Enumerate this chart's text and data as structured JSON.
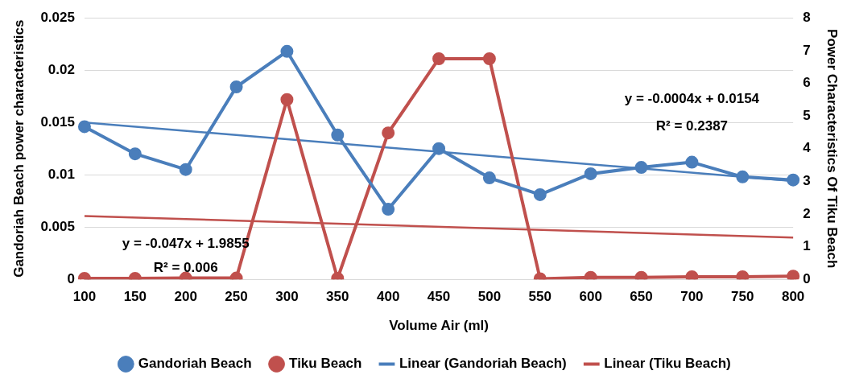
{
  "chart_data": {
    "type": "line",
    "xlabel": "Volume Air (ml)",
    "ylabel": "Gandoriah Beach power characteristics",
    "y2label": "Power Characteristics Of Tiku Beach",
    "categories": [
      "100",
      "150",
      "200",
      "250",
      "300",
      "350",
      "400",
      "450",
      "500",
      "550",
      "600",
      "650",
      "700",
      "750",
      "800"
    ],
    "series": [
      {
        "name": "Gandoriah Beach",
        "color": "#4a7ebb",
        "marker": "circle",
        "values": [
          0.0146,
          0.012,
          0.0105,
          0.0184,
          0.0218,
          0.0138,
          0.0067,
          0.0125,
          0.0097,
          0.0081,
          0.0101,
          0.0107,
          0.0112,
          0.0098,
          0.0095
        ]
      },
      {
        "name": "Tiku Beach",
        "color": "#c0504d",
        "marker": "circle",
        "axis": "y2",
        "values": [
          0.03,
          0.03,
          0.04,
          0.04,
          5.5,
          0.03,
          4.48,
          6.75,
          6.75,
          0.02,
          0.06,
          0.06,
          0.08,
          0.08,
          0.1
        ]
      },
      {
        "name": "Linear (Gandoriah Beach)",
        "color": "#4a7ebb",
        "marker": "none",
        "x": [
          "100",
          "800"
        ],
        "values": [
          0.015,
          0.0094
        ]
      },
      {
        "name": "Linear (Tiku Beach)",
        "color": "#c0504d",
        "marker": "none",
        "axis": "y2",
        "x": [
          "100",
          "800"
        ],
        "values": [
          1.94,
          1.28
        ]
      }
    ],
    "ylim": [
      0,
      0.025
    ],
    "yticks": [
      0,
      0.005,
      0.01,
      0.015,
      0.02,
      0.025
    ],
    "y2lim": [
      0,
      8
    ],
    "y2ticks": [
      0,
      1,
      2,
      3,
      4,
      5,
      6,
      7,
      8
    ],
    "grid": "y",
    "legend": "bottom",
    "annotations": [
      "y = -0.0004x + 0.0154",
      "R² = 0.2387",
      "y = -0.047x + 1.9855",
      "R² = 0.006"
    ]
  }
}
